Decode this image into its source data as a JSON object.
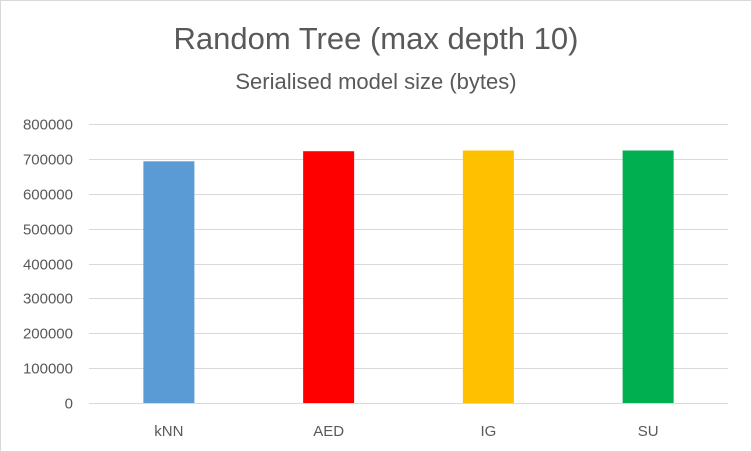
{
  "chart_data": {
    "type": "bar",
    "title": "Random Tree (max depth 10)",
    "subtitle": "Serialised model size (bytes)",
    "xlabel": "",
    "ylabel": "",
    "categories": [
      "kNN",
      "AED",
      "IG",
      "SU"
    ],
    "values": [
      693000,
      722000,
      724000,
      724000
    ],
    "bar_colors": [
      "#5b9bd5",
      "#ff0000",
      "#ffc000",
      "#00b050"
    ],
    "ylim": [
      0,
      800000
    ],
    "yticks": [
      0,
      100000,
      200000,
      300000,
      400000,
      500000,
      600000,
      700000,
      800000
    ],
    "grid": true,
    "legend": "none"
  }
}
